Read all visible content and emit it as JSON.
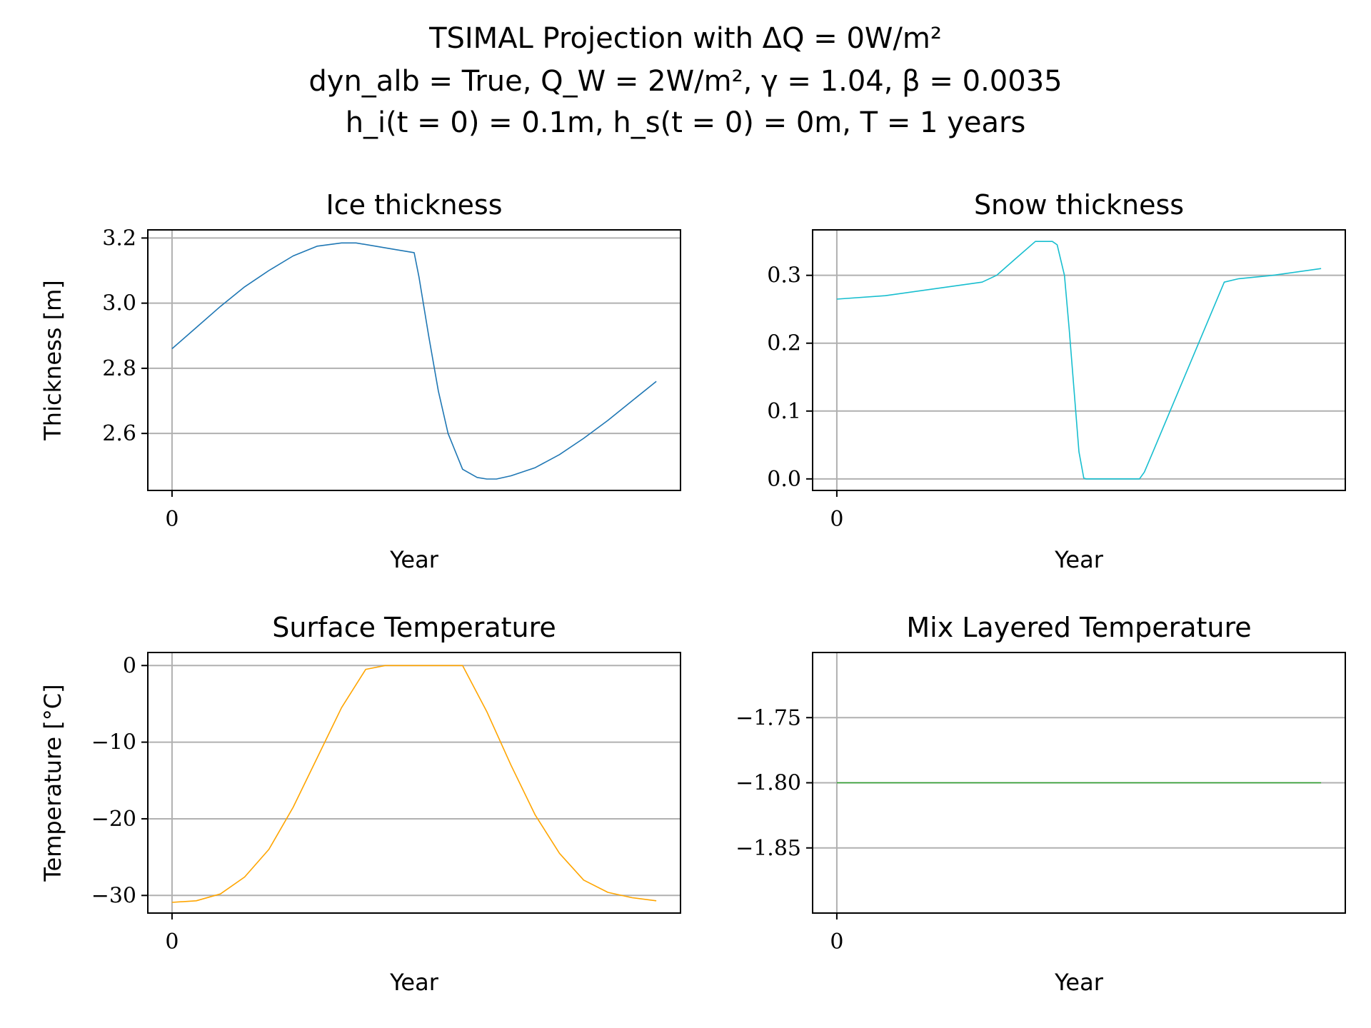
{
  "figure": {
    "suptitle": [
      "TSIMAL Projection with ΔQ = 0W/m²",
      "dyn_alb = True, Q_W = 2W/m², γ = 1.04, β = 0.0035",
      "h_i(t = 0) = 0.1m, h_s(t = 0) = 0m, T = 1 years"
    ]
  },
  "chart_data": [
    {
      "type": "line",
      "title": "Ice thickness",
      "xlabel": "Year",
      "ylabel": "Thickness [m]",
      "xticks": [
        "0"
      ],
      "yticks": [
        2.6,
        2.8,
        3.0,
        3.2
      ],
      "ytick_labels": [
        "2.6",
        "2.8",
        "3.0",
        "3.2"
      ],
      "xlim": [
        -0.05,
        1.05
      ],
      "ylim": [
        2.425,
        3.225
      ],
      "grid": true,
      "color": "#1f77b4",
      "series": [
        {
          "x": [
            0,
            0.05,
            0.1,
            0.15,
            0.2,
            0.25,
            0.3,
            0.35,
            0.38,
            0.42,
            0.46,
            0.5,
            0.51,
            0.53,
            0.55,
            0.57,
            0.6,
            0.63,
            0.65,
            0.67,
            0.7,
            0.75,
            0.8,
            0.85,
            0.9,
            0.95,
            1.0
          ],
          "y": [
            2.86,
            2.925,
            2.99,
            3.05,
            3.1,
            3.145,
            3.175,
            3.185,
            3.185,
            3.175,
            3.165,
            3.155,
            3.08,
            2.9,
            2.73,
            2.6,
            2.49,
            2.465,
            2.46,
            2.46,
            2.47,
            2.495,
            2.535,
            2.585,
            2.64,
            2.7,
            2.76
          ]
        }
      ]
    },
    {
      "type": "line",
      "title": "Snow thickness",
      "xlabel": "Year",
      "ylabel": "",
      "xticks": [
        "0"
      ],
      "yticks": [
        0.0,
        0.1,
        0.2,
        0.3
      ],
      "ytick_labels": [
        "0.0",
        "0.1",
        "0.2",
        "0.3"
      ],
      "xlim": [
        -0.05,
        1.05
      ],
      "ylim": [
        -0.017,
        0.367
      ],
      "grid": true,
      "color": "#17becf",
      "series": [
        {
          "x": [
            0,
            0.1,
            0.2,
            0.3,
            0.33,
            0.37,
            0.41,
            0.445,
            0.455,
            0.47,
            0.48,
            0.49,
            0.5,
            0.51,
            0.515,
            0.6,
            0.625,
            0.635,
            0.65,
            0.7,
            0.8,
            0.83,
            0.9,
            1.0
          ],
          "y": [
            0.265,
            0.27,
            0.28,
            0.29,
            0.3,
            0.325,
            0.35,
            0.35,
            0.345,
            0.3,
            0.22,
            0.13,
            0.04,
            0.001,
            0.0,
            0.0,
            0.0,
            0.01,
            0.035,
            0.12,
            0.29,
            0.295,
            0.3,
            0.31
          ]
        }
      ]
    },
    {
      "type": "line",
      "title": "Surface Temperature",
      "xlabel": "Year",
      "ylabel": "Temperature [°C]",
      "xticks": [
        "0"
      ],
      "yticks": [
        -30,
        -20,
        -10,
        0
      ],
      "ytick_labels": [
        "−30",
        "−20",
        "−10",
        "0"
      ],
      "xlim": [
        -0.05,
        1.05
      ],
      "ylim": [
        -32.3,
        1.7
      ],
      "grid": true,
      "color": "#ffa500",
      "series": [
        {
          "x": [
            0,
            0.05,
            0.1,
            0.15,
            0.2,
            0.25,
            0.3,
            0.35,
            0.4,
            0.44,
            0.5,
            0.6,
            0.65,
            0.7,
            0.75,
            0.8,
            0.85,
            0.9,
            0.95,
            1.0
          ],
          "y": [
            -30.9,
            -30.7,
            -29.8,
            -27.6,
            -24,
            -18.5,
            -12,
            -5.5,
            -0.5,
            0,
            0,
            0,
            -6,
            -13,
            -19.5,
            -24.5,
            -28,
            -29.6,
            -30.3,
            -30.7
          ]
        }
      ]
    },
    {
      "type": "line",
      "title": "Mix Layered Temperature",
      "xlabel": "Year",
      "ylabel": "",
      "xticks": [
        "0"
      ],
      "yticks": [
        -1.85,
        -1.8,
        -1.75
      ],
      "ytick_labels": [
        "−1.85",
        "−1.80",
        "−1.75"
      ],
      "xlim": [
        -0.05,
        1.05
      ],
      "ylim": [
        -1.9,
        -1.7
      ],
      "grid": true,
      "color": "#2ca02c",
      "series": [
        {
          "x": [
            0,
            1.0
          ],
          "y": [
            -1.8,
            -1.8
          ]
        }
      ]
    }
  ]
}
